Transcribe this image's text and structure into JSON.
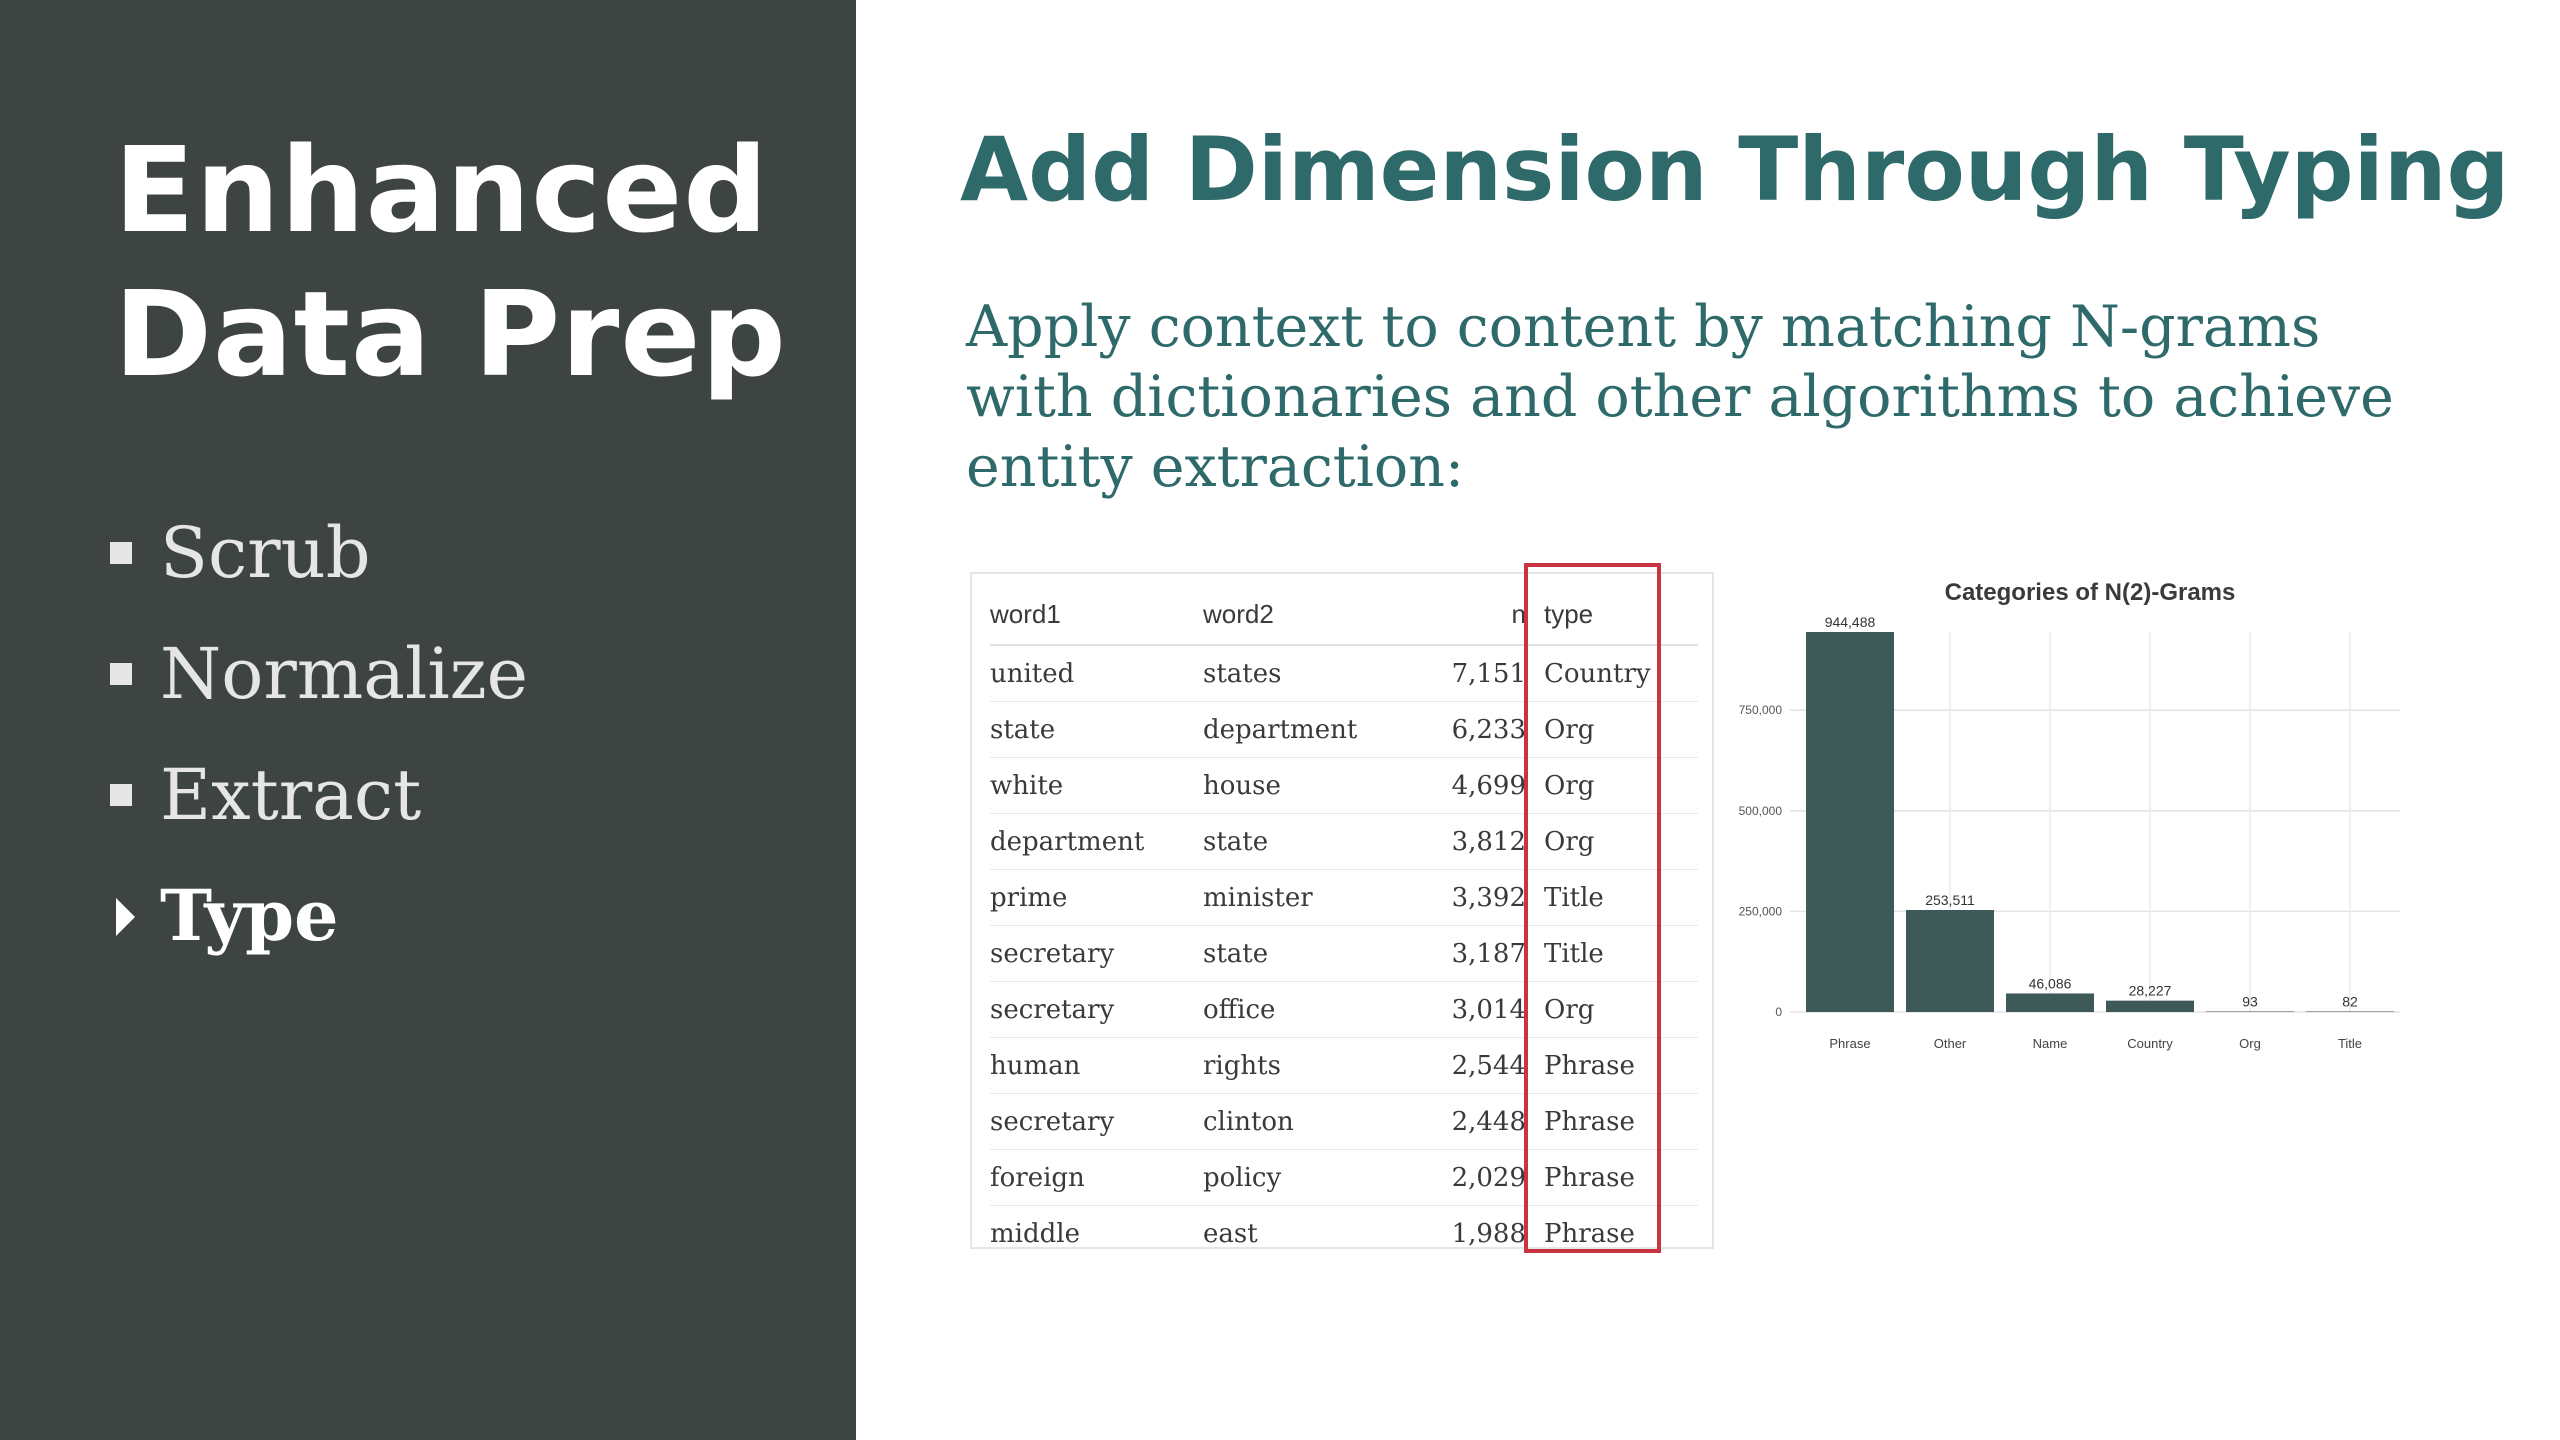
{
  "sidebar": {
    "title_lines": [
      "Enhanced",
      "Data Prep"
    ],
    "items": [
      {
        "label": "Scrub",
        "active": false
      },
      {
        "label": "Normalize",
        "active": false
      },
      {
        "label": "Extract",
        "active": false
      },
      {
        "label": "Type",
        "active": true
      }
    ]
  },
  "main": {
    "title": "Add Dimension Through Typing",
    "subtitle": "Apply context to content by matching N-grams with dictionaries and other algorithms to achieve entity extraction:"
  },
  "table": {
    "headers": [
      "word1",
      "word2",
      "n",
      "type"
    ],
    "rows": [
      [
        "united",
        "states",
        "7,151",
        "Country"
      ],
      [
        "state",
        "department",
        "6,233",
        "Org"
      ],
      [
        "white",
        "house",
        "4,699",
        "Org"
      ],
      [
        "department",
        "state",
        "3,812",
        "Org"
      ],
      [
        "prime",
        "minister",
        "3,392",
        "Title"
      ],
      [
        "secretary",
        "state",
        "3,187",
        "Title"
      ],
      [
        "secretary",
        "office",
        "3,014",
        "Org"
      ],
      [
        "human",
        "rights",
        "2,544",
        "Phrase"
      ],
      [
        "secretary",
        "clinton",
        "2,448",
        "Phrase"
      ],
      [
        "foreign",
        "policy",
        "2,029",
        "Phrase"
      ],
      [
        "middle",
        "east",
        "1,988",
        "Phrase"
      ]
    ],
    "highlight_color": "#c8343f"
  },
  "chart_data": {
    "type": "bar",
    "title": "Categories of N(2)-Grams",
    "categories": [
      "Phrase",
      "Other",
      "Name",
      "Country",
      "Org",
      "Title"
    ],
    "values": [
      944488,
      253511,
      46086,
      28227,
      93,
      82
    ],
    "value_labels": [
      "944,488",
      "253,511",
      "46,086",
      "28,227",
      "93",
      "82"
    ],
    "y_ticks": [
      0,
      250000,
      500000,
      750000
    ],
    "y_tick_labels": [
      "0",
      "250,000",
      "500,000",
      "750,000"
    ],
    "ylim": [
      0,
      944488
    ],
    "bar_color": "#3e5a58",
    "grid": true
  },
  "colors": {
    "sidebar_bg": "#3d4442",
    "accent_teal": "#2f6a6b"
  }
}
